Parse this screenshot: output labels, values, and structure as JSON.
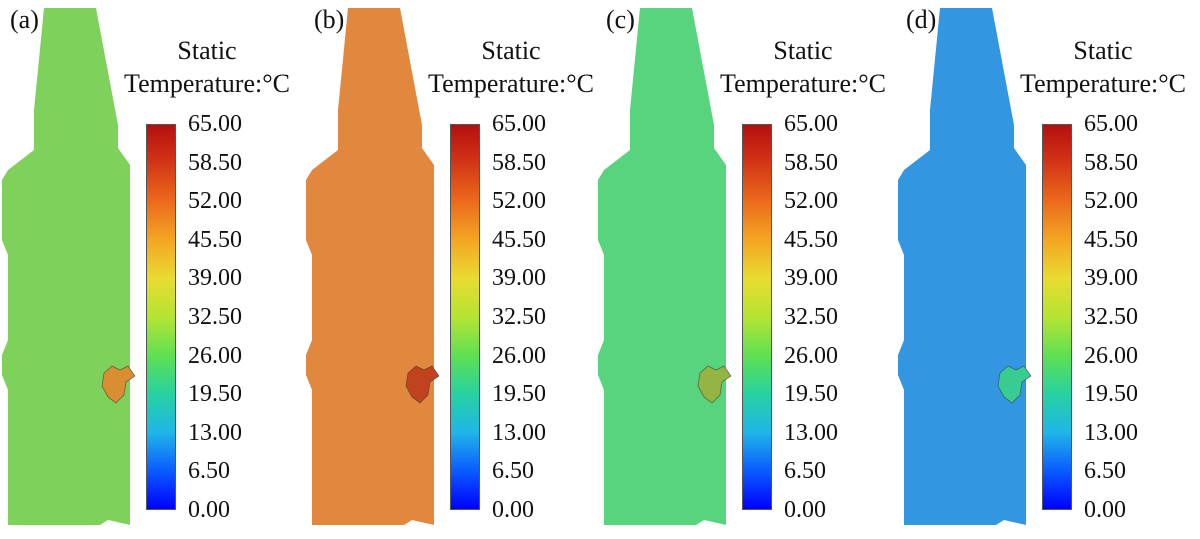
{
  "legend": {
    "title_line1": "Static",
    "title_line2": "Temperature:°C",
    "ticks": [
      "65.00",
      "58.50",
      "52.00",
      "45.50",
      "39.00",
      "32.50",
      "26.00",
      "19.50",
      "13.00",
      "6.50",
      "0.00"
    ],
    "colormap": [
      "#0000ff",
      "#0a5cff",
      "#1fb6e8",
      "#28d2a0",
      "#5ee052",
      "#b4e432",
      "#e8dc30",
      "#f4a623",
      "#ec6b1c",
      "#d43616",
      "#b40f0f"
    ]
  },
  "panels": [
    {
      "label": "(a)",
      "fill": "#7ed25c",
      "hot_fill": "#d98e32"
    },
    {
      "label": "(b)",
      "fill": "#e2883e",
      "hot_fill": "#c0421f"
    },
    {
      "label": "(c)",
      "fill": "#58d47e",
      "hot_fill": "#94b444"
    },
    {
      "label": "(d)",
      "fill": "#3396e0",
      "hot_fill": "#38cc92"
    }
  ]
}
